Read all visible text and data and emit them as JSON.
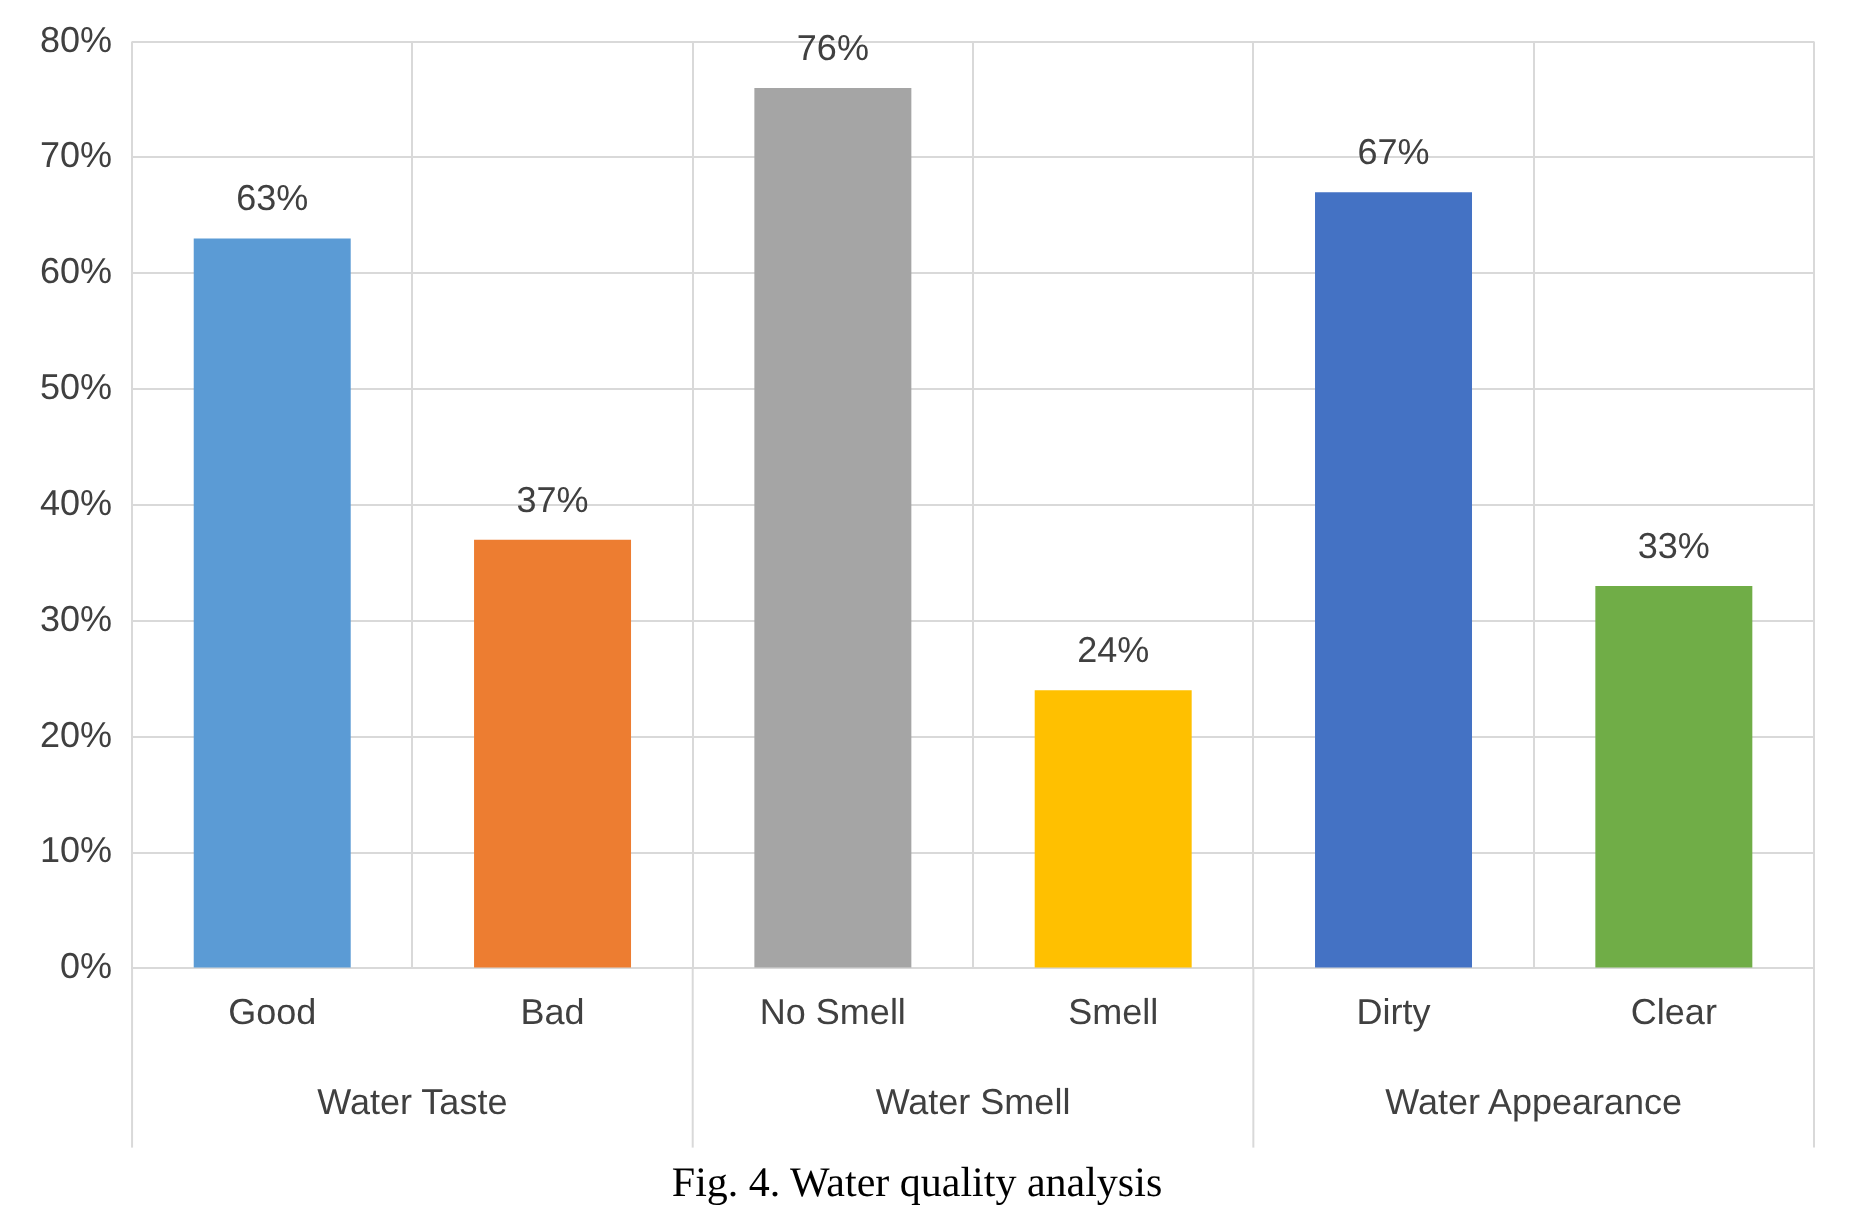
{
  "chart_data": {
    "type": "bar",
    "title": "Fig. 4. Water quality analysis",
    "categories": [
      "Good",
      "Bad",
      "No Smell",
      "Smell",
      "Dirty",
      "Clear"
    ],
    "values": [
      63,
      37,
      76,
      24,
      67,
      33
    ],
    "colors": [
      "#5b9bd5",
      "#ed7d31",
      "#a5a5a5",
      "#ffc000",
      "#4472c4",
      "#70ad47"
    ],
    "value_labels": [
      "63%",
      "37%",
      "76%",
      "24%",
      "67%",
      "33%"
    ],
    "annotations": [
      "Water Taste",
      "Water Smell",
      "Water Appearance"
    ],
    "ylim": [
      0,
      80
    ],
    "yticks": [
      {
        "value": 0,
        "label": "0%"
      },
      {
        "value": 10,
        "label": "10%"
      },
      {
        "value": 20,
        "label": "20%"
      },
      {
        "value": 30,
        "label": "30%"
      },
      {
        "value": 40,
        "label": "40%"
      },
      {
        "value": 50,
        "label": "50%"
      },
      {
        "value": 60,
        "label": "60%"
      },
      {
        "value": 70,
        "label": "70%"
      },
      {
        "value": 80,
        "label": "80%"
      }
    ],
    "grid": true,
    "legend": false
  }
}
